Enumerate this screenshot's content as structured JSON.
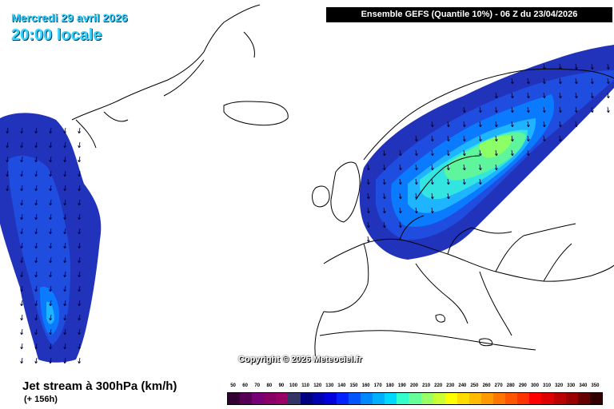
{
  "header": {
    "date": "Mercredi 29 avril 2026",
    "time": "20:00 locale",
    "model_info": "Ensemble GEFS  (Quantile 10%) - 06 Z du 23/04/2026"
  },
  "footer": {
    "copyright": "Copyright © 2026 Meteociel.fr",
    "parameter": "Jet stream à 300hPa (km/h)",
    "lead_time": "(+ 156h)"
  },
  "legend": {
    "labels": [
      "50",
      "60",
      "70",
      "80",
      "90",
      "100",
      "110",
      "120",
      "130",
      "140",
      "150",
      "160",
      "170",
      "180",
      "190",
      "200",
      "210",
      "220",
      "230",
      "240",
      "250",
      "260",
      "270",
      "280",
      "290",
      "300",
      "310",
      "320",
      "330",
      "340",
      "350"
    ],
    "colors": [
      "#330033",
      "#550055",
      "#770077",
      "#880066",
      "#990066",
      "#333366",
      "#000080",
      "#0000b0",
      "#0000dd",
      "#0022ff",
      "#0055ff",
      "#0088ff",
      "#00b0ff",
      "#00d8ff",
      "#33ffcc",
      "#66ff99",
      "#99ff66",
      "#ccff33",
      "#ffff00",
      "#ffdd00",
      "#ffbb00",
      "#ff9900",
      "#ff7700",
      "#ff5500",
      "#ff3300",
      "#ff0000",
      "#dd0000",
      "#bb0000",
      "#990000",
      "#660000",
      "#330000"
    ]
  },
  "colors": {
    "jet_low": "#2233bb",
    "jet_mid": "#0088ff",
    "jet_high": "#00d8ff",
    "jet_core": "#66ff66",
    "land_outline": "#000000"
  }
}
